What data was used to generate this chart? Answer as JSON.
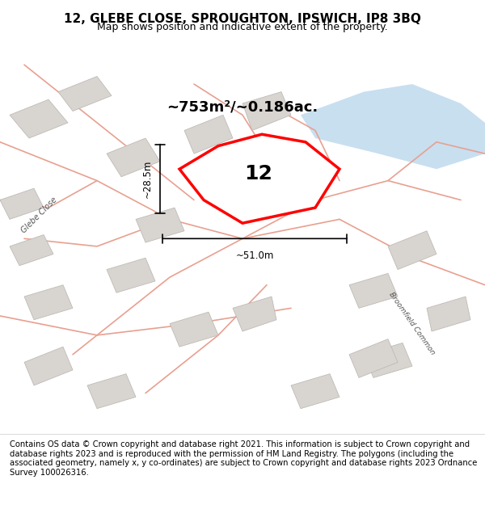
{
  "title": "12, GLEBE CLOSE, SPROUGHTON, IPSWICH, IP8 3BQ",
  "subtitle": "Map shows position and indicative extent of the property.",
  "footer": "Contains OS data © Crown copyright and database right 2021. This information is subject to Crown copyright and database rights 2023 and is reproduced with the permission of HM Land Registry. The polygons (including the associated geometry, namely x, y co-ordinates) are subject to Crown copyright and database rights 2023 Ordnance Survey 100026316.",
  "area_label": "~753m²/~0.186ac.",
  "property_number": "12",
  "dim_height": "~28.5m",
  "dim_width": "~51.0m",
  "street_label_1": "Glebe Close",
  "street_label_2": "Broomfield Common",
  "bg_color": "#f0eeec",
  "map_bg": "#f5f3f0",
  "road_color": "#e8a090",
  "building_color": "#d8d4d0",
  "building_edge": "#b8b4b0",
  "property_color": "#ff0000",
  "property_fill": "#ffffff",
  "water_color": "#c8dff0",
  "dim_line_color": "#000000",
  "title_fontsize": 11,
  "subtitle_fontsize": 9,
  "footer_fontsize": 7.2,
  "figsize": [
    6.0,
    6.25
  ],
  "dpi": 100
}
